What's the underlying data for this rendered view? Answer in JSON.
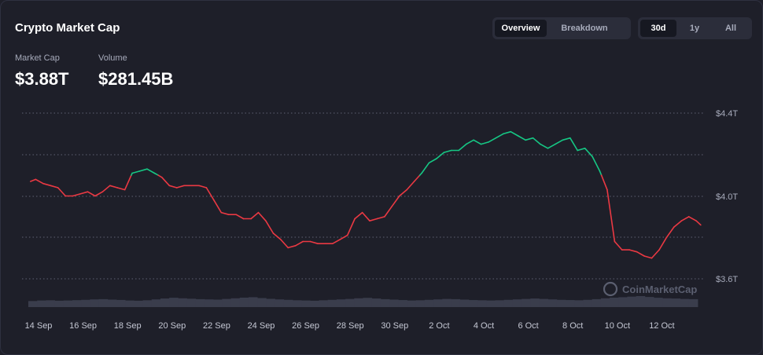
{
  "header": {
    "title": "Crypto Market Cap"
  },
  "view_toggle": {
    "options": [
      "Overview",
      "Breakdown"
    ],
    "selected": "Overview"
  },
  "range_toggle": {
    "options": [
      "30d",
      "1y",
      "All"
    ],
    "selected": "30d"
  },
  "stats": {
    "market_cap_label": "Market Cap",
    "market_cap_value": "$3.88T",
    "volume_label": "Volume",
    "volume_value": "$281.45B"
  },
  "watermark": "CoinMarketCap",
  "colors": {
    "up": "#16c784",
    "down": "#ea3943",
    "grid": "#5d6072",
    "background": "#1e1f29"
  },
  "chart_data": {
    "type": "line",
    "series_name": "Market Cap",
    "unit": "T (trillion USD)",
    "x_tick_labels": [
      "14 Sep",
      "16 Sep",
      "18 Sep",
      "20 Sep",
      "22 Sep",
      "24 Sep",
      "26 Sep",
      "28 Sep",
      "30 Sep",
      "2 Oct",
      "4 Oct",
      "6 Oct",
      "8 Oct",
      "10 Oct",
      "12 Oct"
    ],
    "y_tick_labels": [
      "$4.4T",
      "$4.0T",
      "$3.6T"
    ],
    "ylim": [
      3.6,
      4.4
    ],
    "grid": "horizontal dotted",
    "baseline": 4.1,
    "x_range_days": [
      0,
      30.7
    ],
    "points": [
      [
        0.15,
        4.07
      ],
      [
        0.5,
        4.08
      ],
      [
        1.0,
        4.06
      ],
      [
        1.5,
        4.05
      ],
      [
        2.0,
        4.04
      ],
      [
        2.5,
        4.0
      ],
      [
        3.0,
        4.0
      ],
      [
        3.5,
        4.01
      ],
      [
        4.0,
        4.02
      ],
      [
        4.5,
        4.0
      ],
      [
        5.0,
        4.02
      ],
      [
        5.5,
        4.05
      ],
      [
        6.0,
        4.04
      ],
      [
        6.5,
        4.03
      ],
      [
        7.0,
        4.11
      ],
      [
        7.5,
        4.12
      ],
      [
        8.0,
        4.13
      ],
      [
        8.5,
        4.11
      ],
      [
        9.0,
        4.09
      ],
      [
        9.5,
        4.05
      ],
      [
        10.0,
        4.04
      ],
      [
        10.5,
        4.05
      ],
      [
        11.0,
        4.05
      ],
      [
        11.5,
        4.05
      ],
      [
        12.0,
        4.04
      ],
      [
        12.5,
        3.98
      ],
      [
        13.0,
        3.92
      ],
      [
        13.5,
        3.91
      ],
      [
        14.0,
        3.91
      ],
      [
        14.5,
        3.89
      ],
      [
        15.0,
        3.89
      ],
      [
        15.5,
        3.92
      ],
      [
        16.0,
        3.88
      ],
      [
        16.5,
        3.82
      ],
      [
        17.0,
        3.79
      ],
      [
        17.5,
        3.75
      ],
      [
        18.0,
        3.76
      ],
      [
        18.5,
        3.78
      ],
      [
        19.0,
        3.78
      ],
      [
        19.5,
        3.77
      ],
      [
        20.0,
        3.77
      ],
      [
        20.5,
        3.77
      ],
      [
        21.0,
        3.79
      ],
      [
        21.5,
        3.81
      ],
      [
        22.0,
        3.89
      ],
      [
        22.5,
        3.92
      ],
      [
        23.0,
        3.88
      ],
      [
        23.5,
        3.89
      ],
      [
        24.0,
        3.9
      ],
      [
        24.5,
        3.95
      ],
      [
        25.0,
        4.0
      ],
      [
        25.5,
        4.03
      ],
      [
        26.0,
        4.07
      ],
      [
        26.5,
        4.11
      ],
      [
        27.0,
        4.16
      ],
      [
        27.5,
        4.18
      ],
      [
        28.0,
        4.21
      ],
      [
        28.5,
        4.22
      ],
      [
        29.0,
        4.22
      ],
      [
        29.5,
        4.25
      ],
      [
        30.0,
        4.27
      ],
      [
        30.5,
        4.25
      ],
      [
        31.0,
        4.26
      ],
      [
        31.5,
        4.28
      ],
      [
        32.0,
        4.3
      ],
      [
        32.5,
        4.31
      ],
      [
        33.0,
        4.29
      ],
      [
        33.5,
        4.27
      ],
      [
        34.0,
        4.28
      ],
      [
        34.5,
        4.25
      ],
      [
        35.0,
        4.23
      ],
      [
        35.5,
        4.25
      ],
      [
        36.0,
        4.27
      ],
      [
        36.5,
        4.28
      ],
      [
        37.0,
        4.22
      ],
      [
        37.5,
        4.23
      ],
      [
        38.0,
        4.19
      ],
      [
        38.5,
        4.12
      ],
      [
        39.0,
        4.03
      ],
      [
        39.5,
        3.78
      ],
      [
        40.0,
        3.74
      ],
      [
        40.5,
        3.74
      ],
      [
        41.0,
        3.73
      ],
      [
        41.5,
        3.71
      ],
      [
        42.0,
        3.7
      ],
      [
        42.5,
        3.74
      ],
      [
        43.0,
        3.8
      ],
      [
        43.5,
        3.85
      ],
      [
        44.0,
        3.88
      ],
      [
        44.5,
        3.9
      ],
      [
        45.0,
        3.88
      ],
      [
        45.3,
        3.86
      ]
    ],
    "volume_bars_relative": [
      0.55,
      0.6,
      0.62,
      0.58,
      0.6,
      0.63,
      0.66,
      0.7,
      0.72,
      0.68,
      0.65,
      0.6,
      0.58,
      0.62,
      0.7,
      0.78,
      0.85,
      0.8,
      0.76,
      0.72,
      0.7,
      0.68,
      0.74,
      0.8,
      0.86,
      0.9,
      0.82,
      0.75,
      0.7,
      0.66,
      0.62,
      0.6,
      0.58,
      0.62,
      0.66,
      0.7,
      0.74,
      0.8,
      0.84,
      0.78,
      0.72,
      0.68,
      0.64,
      0.6,
      0.62,
      0.66,
      0.7,
      0.74,
      0.72,
      0.68,
      0.64,
      0.62,
      0.6,
      0.62,
      0.66,
      0.7,
      0.74,
      0.78,
      0.74,
      0.7,
      0.66,
      0.64,
      0.62,
      0.66,
      0.72,
      0.8,
      0.86,
      0.9,
      0.95,
      1.0,
      0.92,
      0.85,
      0.8,
      0.78,
      0.74,
      0.72
    ]
  }
}
